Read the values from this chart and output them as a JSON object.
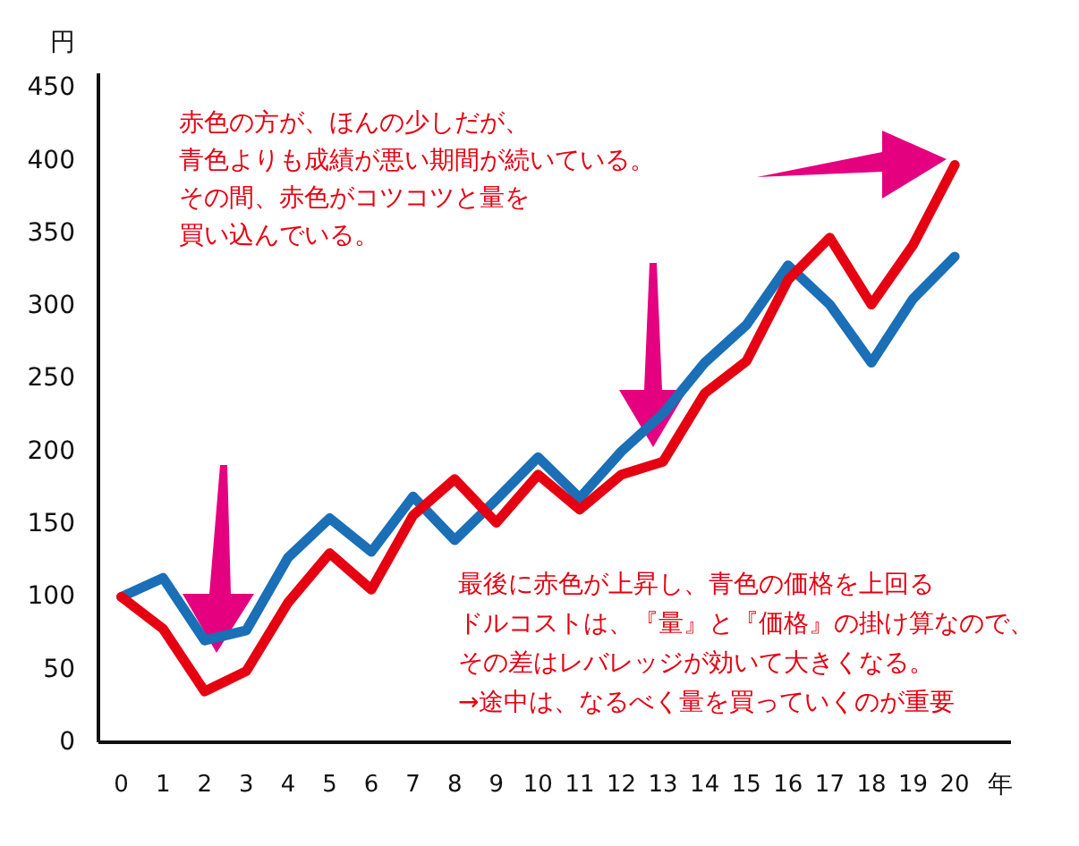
{
  "chart_data": {
    "type": "line",
    "ylabel": "円",
    "xlabel": "年",
    "x": [
      0,
      1,
      2,
      3,
      4,
      5,
      6,
      7,
      8,
      9,
      10,
      11,
      12,
      13,
      14,
      15,
      16,
      17,
      18,
      19,
      20
    ],
    "xlim": [
      -0.55,
      21.35
    ],
    "ylim": [
      0,
      460
    ],
    "xticks": [
      0,
      1,
      2,
      3,
      4,
      5,
      6,
      7,
      8,
      9,
      10,
      11,
      12,
      13,
      14,
      15,
      16,
      17,
      18,
      19,
      20
    ],
    "yticks": [
      0,
      50,
      100,
      150,
      200,
      250,
      300,
      350,
      400,
      450
    ],
    "line_style": "solid",
    "series": [
      {
        "color": "#1a6fb6",
        "values": [
          100,
          113,
          70,
          77,
          127,
          154,
          131,
          169,
          139,
          167,
          196,
          168,
          200,
          226,
          261,
          287,
          328,
          301,
          261,
          305,
          334
        ]
      },
      {
        "color": "#e50012",
        "values": [
          100,
          78,
          35,
          49,
          96,
          130,
          105,
          156,
          181,
          151,
          184,
          160,
          184,
          193,
          240,
          262,
          318,
          347,
          301,
          342,
          397
        ]
      }
    ],
    "annotations": [
      "赤色の方が、ほんの少しだが、青色よりも成績が悪い期間が続いている。その間、赤色がコツコツと量を買い込んでいる。",
      "最後に赤色が上昇し、青色の価格を上回るドルコストは、『量』と『価格』の掛け算なので、その差はレバレッジが効いて大きくなる。→途中は、なるべく量を買っていくのが重要"
    ]
  }
}
